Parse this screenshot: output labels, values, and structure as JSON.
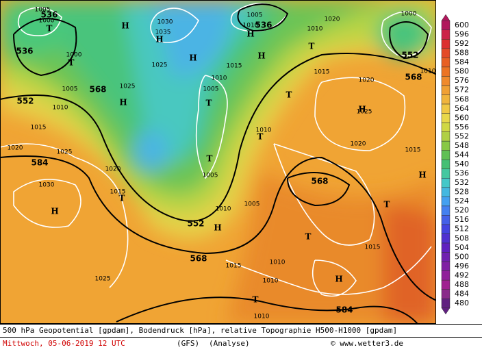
{
  "map": {
    "labels": [
      "1005",
      "536",
      "1000",
      "T",
      "536",
      "T",
      "1000",
      "1005",
      "568",
      "552",
      "1010",
      "1015",
      "1020",
      "1025",
      "584",
      "1030",
      "H",
      "1020",
      "1015",
      "T",
      "H",
      "1030",
      "1035",
      "H",
      "1025",
      "H",
      "1025",
      "H",
      "1010",
      "1005",
      "T",
      "T",
      "1005",
      "1010",
      "552",
      "H",
      "568",
      "1015",
      "1025",
      "1005",
      "1010",
      "536",
      "H",
      "1020",
      "1010",
      "T",
      "H",
      "1015",
      "1015",
      "1020",
      "T",
      "H",
      "1025",
      "1010",
      "T",
      "1020",
      "568",
      "1005",
      "T",
      "T",
      "1015",
      "1010",
      "1010",
      "H",
      "T",
      "1010",
      "584",
      "1015",
      "H",
      "1000",
      "552",
      "568",
      "1010"
    ],
    "colorbar": [
      {
        "value": 600,
        "color": "#b0185c"
      },
      {
        "value": 596,
        "color": "#cc2448"
      },
      {
        "value": 592,
        "color": "#dc3030"
      },
      {
        "value": 588,
        "color": "#e44a28"
      },
      {
        "value": 584,
        "color": "#e86024"
      },
      {
        "value": 580,
        "color": "#ec7424"
      },
      {
        "value": 576,
        "color": "#f08a2c"
      },
      {
        "value": 572,
        "color": "#f0a034"
      },
      {
        "value": 568,
        "color": "#f0b43c"
      },
      {
        "value": 564,
        "color": "#f0c844"
      },
      {
        "value": 560,
        "color": "#e8d84a"
      },
      {
        "value": 556,
        "color": "#d0d844"
      },
      {
        "value": 552,
        "color": "#b0d044"
      },
      {
        "value": 548,
        "color": "#88c844"
      },
      {
        "value": 544,
        "color": "#60c054"
      },
      {
        "value": 540,
        "color": "#44c074"
      },
      {
        "value": 536,
        "color": "#44c8a0"
      },
      {
        "value": 532,
        "color": "#44c8c8"
      },
      {
        "value": 528,
        "color": "#44b8e0"
      },
      {
        "value": 524,
        "color": "#44a0f0"
      },
      {
        "value": 520,
        "color": "#4480f0"
      },
      {
        "value": 516,
        "color": "#4460e8"
      },
      {
        "value": 512,
        "color": "#4444e0"
      },
      {
        "value": 508,
        "color": "#5030d0"
      },
      {
        "value": 504,
        "color": "#6020c0"
      },
      {
        "value": 500,
        "color": "#7020b0"
      },
      {
        "value": 496,
        "color": "#8020a4"
      },
      {
        "value": 492,
        "color": "#90209a"
      },
      {
        "value": 488,
        "color": "#a02090"
      },
      {
        "value": 484,
        "color": "#8a2a8a"
      },
      {
        "value": 480,
        "color": "#602080"
      }
    ]
  },
  "footer": {
    "title": "500 hPa Geopotential [gpdam], Bodendruck [hPa], relative Topographie H500-H1000 [gpdam]",
    "date": "Mittwoch, 05-06-2019  12 UTC",
    "model": "(GFS)",
    "run": "(Analyse)",
    "credit": "© www.wetter3.de"
  }
}
